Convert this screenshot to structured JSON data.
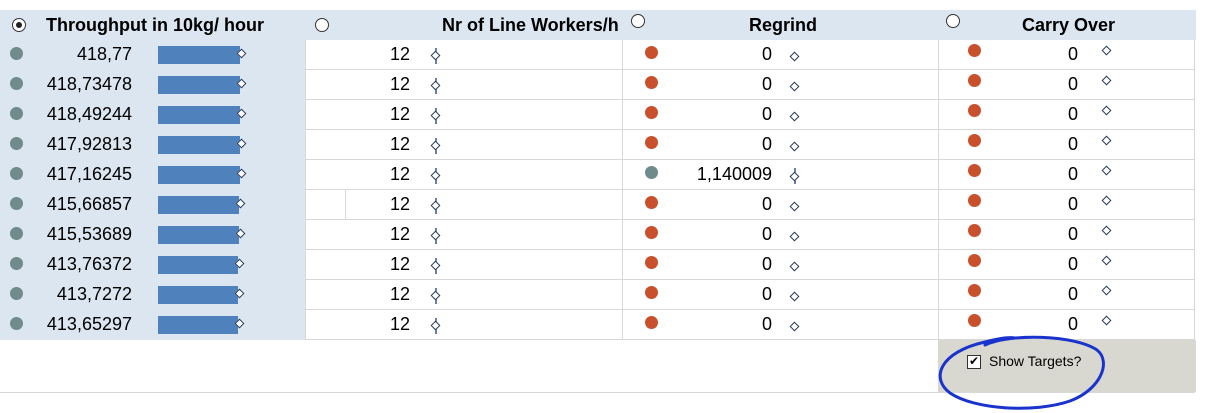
{
  "headers": {
    "throughput": "Throughput in 10kg/ hour",
    "workers": "Nr of Line Workers/h",
    "regrind": "Regrind",
    "carry_over": "Carry Over"
  },
  "rows": [
    {
      "throughput": "418,77",
      "workers": "12",
      "regrind": "0",
      "carry_over": "0",
      "regrind_status": "red",
      "throughput_bar_fraction": 0.97
    },
    {
      "throughput": "418,73478",
      "workers": "12",
      "regrind": "0",
      "carry_over": "0",
      "regrind_status": "red",
      "throughput_bar_fraction": 0.97
    },
    {
      "throughput": "418,49244",
      "workers": "12",
      "regrind": "0",
      "carry_over": "0",
      "regrind_status": "red",
      "throughput_bar_fraction": 0.97
    },
    {
      "throughput": "417,92813",
      "workers": "12",
      "regrind": "0",
      "carry_over": "0",
      "regrind_status": "red",
      "throughput_bar_fraction": 0.96
    },
    {
      "throughput": "417,16245",
      "workers": "12",
      "regrind": "1,140009",
      "carry_over": "0",
      "regrind_status": "grey",
      "throughput_bar_fraction": 0.96
    },
    {
      "throughput": "415,66857",
      "workers": "12",
      "regrind": "0",
      "carry_over": "0",
      "regrind_status": "red",
      "throughput_bar_fraction": 0.95
    },
    {
      "throughput": "415,53689",
      "workers": "12",
      "regrind": "0",
      "carry_over": "0",
      "regrind_status": "red",
      "throughput_bar_fraction": 0.95
    },
    {
      "throughput": "413,76372",
      "workers": "12",
      "regrind": "0",
      "carry_over": "0",
      "regrind_status": "red",
      "throughput_bar_fraction": 0.94
    },
    {
      "throughput": "413,7272",
      "workers": "12",
      "regrind": "0",
      "carry_over": "0",
      "regrind_status": "red",
      "throughput_bar_fraction": 0.94
    },
    {
      "throughput": "413,65297",
      "workers": "12",
      "regrind": "0",
      "carry_over": "0",
      "regrind_status": "red",
      "throughput_bar_fraction": 0.94
    }
  ],
  "show_targets": {
    "label": "Show Targets?",
    "checked": true
  },
  "colors": {
    "bar": "#4f81bd",
    "status_grey": "#708b8b",
    "status_red": "#c8502d",
    "annotation": "#1a33cc"
  }
}
